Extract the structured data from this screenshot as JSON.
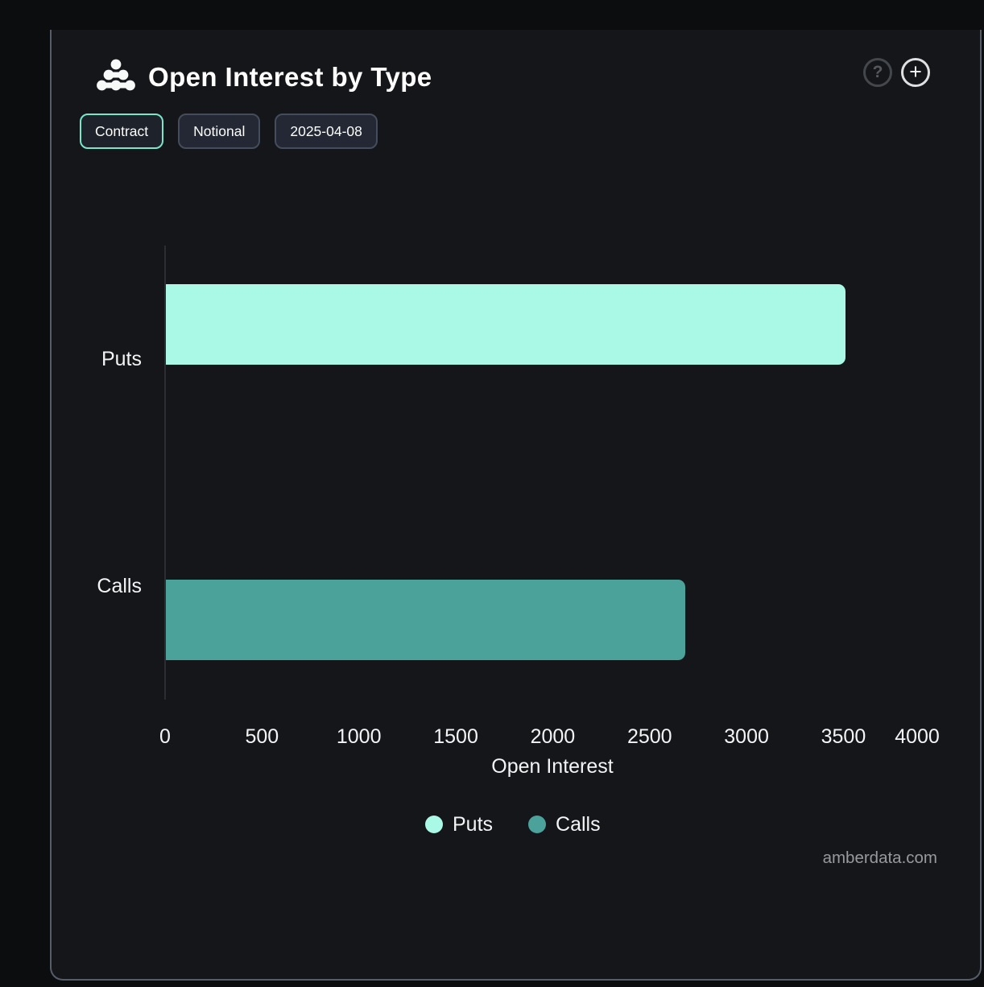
{
  "panel": {
    "title": "Open Interest by Type",
    "watermark": "amberdata.com"
  },
  "icons": {
    "logo": "amberdata-dots-logo",
    "help": "?",
    "expand": "+"
  },
  "toolbar": {
    "buttons": [
      {
        "label": "Contract",
        "active": true
      },
      {
        "label": "Notional",
        "active": false
      },
      {
        "label": "2025-04-08",
        "active": false
      }
    ]
  },
  "chart_data": {
    "type": "bar",
    "orientation": "horizontal",
    "title": "Open Interest by Type",
    "categories": [
      "Puts",
      "Calls"
    ],
    "series": [
      {
        "name": "Puts",
        "color": "#a9f9e6",
        "values": [
          3505,
          0
        ]
      },
      {
        "name": "Calls",
        "color": "#4aa29a",
        "values": [
          0,
          2678
        ]
      }
    ],
    "xlabel": "Open Interest",
    "ylabel": "",
    "xlim": [
      0,
      4000
    ],
    "xticks": [
      0,
      500,
      1000,
      1500,
      2000,
      2500,
      3000,
      3500,
      4000
    ],
    "grid": false,
    "legend": [
      {
        "label": "Puts",
        "color": "#a9f9e6"
      },
      {
        "label": "Calls",
        "color": "#4aa29a"
      }
    ],
    "legend_position": "bottom"
  },
  "colors": {
    "page_bg": "#0c0d0f",
    "panel_bg": "#15161a",
    "panel_border": "#565d69",
    "axis_line": "#2b2d32",
    "text": "#f3f4f5",
    "accent_active_border": "#77e7ca",
    "watermark": "#97999d"
  }
}
